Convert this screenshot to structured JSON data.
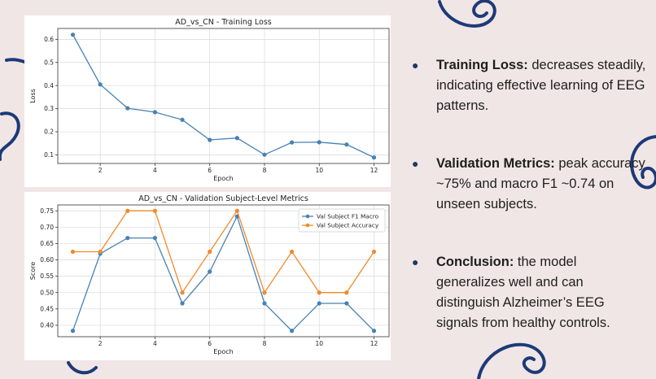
{
  "colors": {
    "background": "#f1e6e6",
    "series_blue": "#4682b4",
    "series_orange": "#f08a2c",
    "decor_navy": "#1d3a78"
  },
  "chart_data": [
    {
      "type": "line",
      "title": "AD_vs_CN - Training Loss",
      "xlabel": "Epoch",
      "ylabel": "Loss",
      "x": [
        1,
        2,
        3,
        4,
        5,
        6,
        7,
        8,
        9,
        10,
        11,
        12
      ],
      "series": [
        {
          "name": "Training Loss",
          "color": "#4682b4",
          "values": [
            0.62,
            0.405,
            0.302,
            0.285,
            0.252,
            0.165,
            0.173,
            0.101,
            0.154,
            0.155,
            0.145,
            0.089
          ]
        }
      ],
      "xlim": [
        0.45,
        12.55
      ],
      "ylim": [
        0.063,
        0.647
      ],
      "xticks": [
        2,
        4,
        6,
        8,
        10,
        12
      ],
      "yticks": [
        0.1,
        0.2,
        0.3,
        0.4,
        0.5,
        0.6
      ],
      "ytick_labels": [
        "0.1",
        "0.2",
        "0.3",
        "0.4",
        "0.5",
        "0.6"
      ],
      "grid": true,
      "legend": "none"
    },
    {
      "type": "line",
      "title": "AD_vs_CN - Validation Subject-Level Metrics",
      "xlabel": "Epoch",
      "ylabel": "Score",
      "x": [
        1,
        2,
        3,
        4,
        5,
        6,
        7,
        8,
        9,
        10,
        11,
        12
      ],
      "series": [
        {
          "name": "Val Subject F1 Macro",
          "color": "#4682b4",
          "values": [
            0.383,
            0.619,
            0.667,
            0.667,
            0.467,
            0.564,
            0.733,
            0.467,
            0.383,
            0.467,
            0.467,
            0.383
          ]
        },
        {
          "name": "Val Subject Accuracy",
          "color": "#f08a2c",
          "values": [
            0.625,
            0.625,
            0.75,
            0.75,
            0.5,
            0.625,
            0.75,
            0.5,
            0.625,
            0.5,
            0.5,
            0.625
          ]
        }
      ],
      "xlim": [
        0.45,
        12.55
      ],
      "ylim": [
        0.365,
        0.768
      ],
      "xticks": [
        2,
        4,
        6,
        8,
        10,
        12
      ],
      "yticks": [
        0.4,
        0.45,
        0.5,
        0.55,
        0.6,
        0.65,
        0.7,
        0.75
      ],
      "ytick_labels": [
        "0.40",
        "0.45",
        "0.50",
        "0.55",
        "0.60",
        "0.65",
        "0.70",
        "0.75"
      ],
      "grid": true,
      "legend": "top-right"
    }
  ],
  "bullets": [
    {
      "heading": "Training Loss:",
      "text": " decreases steadily, indicating effective learning of EEG patterns."
    },
    {
      "heading": "Validation Metrics:",
      "text": " peak accuracy ~75% and macro F1 ~0.74 on unseen subjects."
    },
    {
      "heading": "Conclusion:",
      "text": " the model generalizes well and can distinguish Alzheimer’s EEG signals from healthy controls."
    }
  ],
  "bullet_symbol": "●"
}
